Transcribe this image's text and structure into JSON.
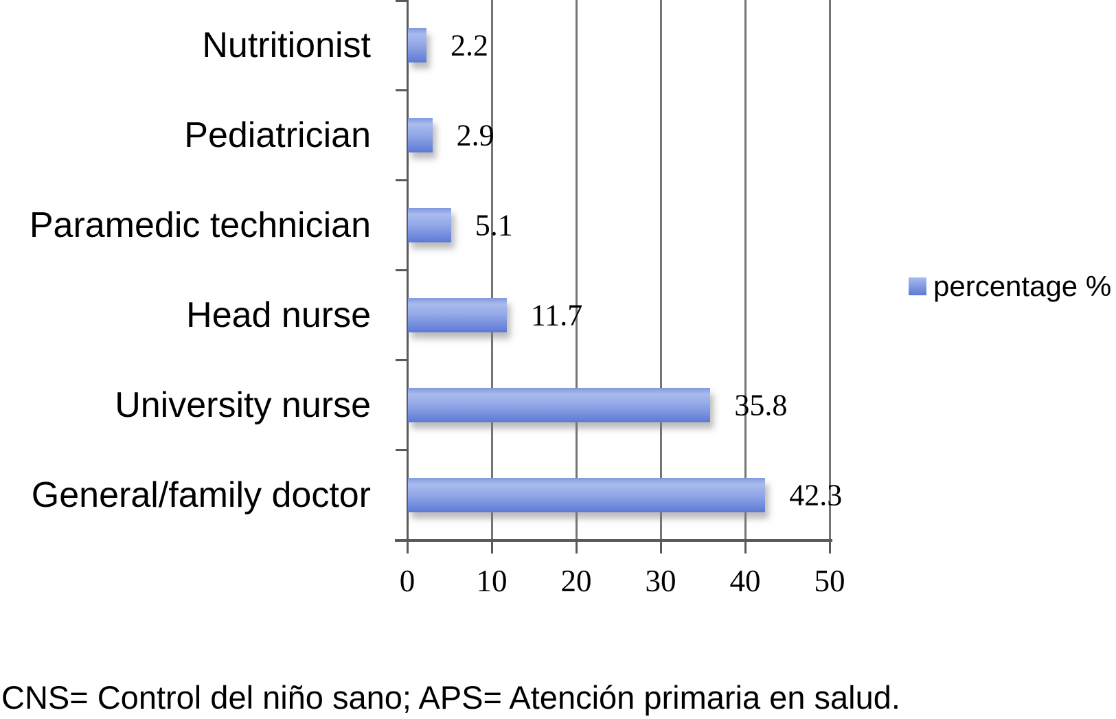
{
  "chart_data": {
    "type": "bar",
    "orientation": "horizontal",
    "title": "",
    "xlabel": "",
    "ylabel": "",
    "categories": [
      "Nutritionist",
      "Pediatrician",
      "Paramedic technician",
      "Head nurse",
      "University nurse",
      "General/family doctor"
    ],
    "series": [
      {
        "name": "percentage %",
        "values": [
          2.2,
          2.9,
          5.1,
          11.7,
          35.8,
          42.3
        ]
      }
    ],
    "value_labels": [
      "2.2",
      "2.9",
      "5.1",
      "11.7",
      "35.8",
      "42.3"
    ],
    "xlim": [
      0,
      50
    ],
    "x_ticks": [
      0,
      10,
      20,
      30,
      40,
      50
    ],
    "grid": true,
    "legend_position": "right"
  },
  "legend": {
    "label": "percentage %"
  },
  "footer": {
    "note": "CNS= Control del niño sano; APS= Atención primaria en salud."
  },
  "colors": {
    "bar_top": "#809ade",
    "bar_highlight": "#a9bbee",
    "bar_mid": "#93a9e7",
    "bar_bottom": "#5d79d5",
    "gridline": "#747474",
    "axis": "#5a5a5a",
    "text": "#000000"
  }
}
